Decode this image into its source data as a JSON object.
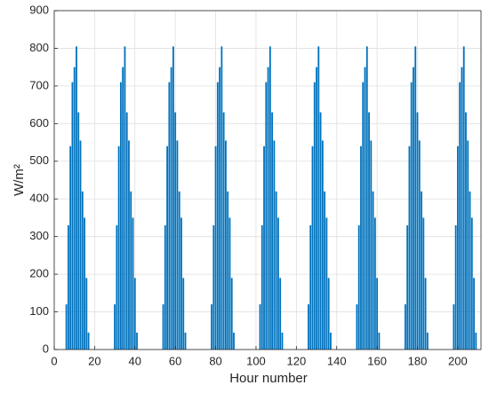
{
  "chart_data": {
    "type": "bar",
    "xlabel": "Hour number",
    "ylabel": "W/m²",
    "color": "#0072bd",
    "grid": true,
    "xlim": [
      0,
      211.5
    ],
    "ylim": [
      0,
      900
    ],
    "xticks": [
      0,
      20,
      40,
      60,
      80,
      100,
      120,
      140,
      160,
      180,
      200
    ],
    "yticks": [
      0,
      100,
      200,
      300,
      400,
      500,
      600,
      700,
      800,
      900
    ],
    "x": [
      6,
      7,
      8,
      9,
      10,
      11,
      12,
      13,
      14,
      15,
      16,
      17,
      30,
      31,
      32,
      33,
      34,
      35,
      36,
      37,
      38,
      39,
      40,
      41,
      54,
      55,
      56,
      57,
      58,
      59,
      60,
      61,
      62,
      63,
      64,
      65,
      78,
      79,
      80,
      81,
      82,
      83,
      84,
      85,
      86,
      87,
      88,
      89,
      102,
      103,
      104,
      105,
      106,
      107,
      108,
      109,
      110,
      111,
      112,
      113,
      126,
      127,
      128,
      129,
      130,
      131,
      132,
      133,
      134,
      135,
      136,
      137,
      150,
      151,
      152,
      153,
      154,
      155,
      156,
      157,
      158,
      159,
      160,
      161,
      174,
      175,
      176,
      177,
      178,
      179,
      180,
      181,
      182,
      183,
      184,
      185,
      198,
      199,
      200,
      201,
      202,
      203,
      204,
      205,
      206,
      207,
      208,
      209
    ],
    "values": [
      120,
      330,
      540,
      710,
      750,
      805,
      630,
      555,
      420,
      350,
      190,
      45,
      120,
      330,
      540,
      710,
      750,
      805,
      630,
      555,
      420,
      350,
      190,
      45,
      120,
      330,
      540,
      710,
      750,
      805,
      630,
      555,
      420,
      350,
      190,
      45,
      120,
      330,
      540,
      710,
      750,
      805,
      630,
      555,
      420,
      350,
      190,
      45,
      120,
      330,
      540,
      710,
      750,
      805,
      630,
      555,
      420,
      350,
      190,
      45,
      120,
      330,
      540,
      710,
      750,
      805,
      630,
      555,
      420,
      350,
      190,
      45,
      120,
      330,
      540,
      710,
      750,
      805,
      630,
      555,
      420,
      350,
      190,
      45,
      120,
      330,
      540,
      710,
      750,
      805,
      630,
      555,
      420,
      350,
      190,
      45,
      120,
      330,
      540,
      710,
      750,
      805,
      630,
      555,
      420,
      350,
      190,
      45
    ]
  }
}
